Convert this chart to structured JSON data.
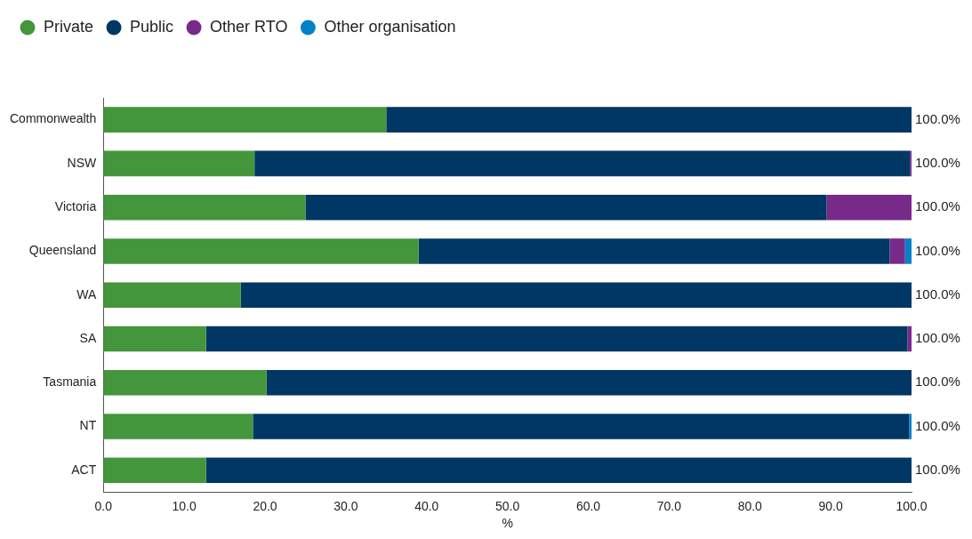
{
  "chart_data": {
    "type": "bar",
    "orientation": "horizontal",
    "stacked": true,
    "xlabel": "%",
    "categories": [
      "Commonwealth",
      "NSW",
      "Victoria",
      "Queensland",
      "WA",
      "SA",
      "Tasmania",
      "NT",
      "ACT"
    ],
    "series": [
      {
        "name": "Private",
        "color": "#43963c",
        "values": [
          35.0,
          18.7,
          25.0,
          39.0,
          17.0,
          12.7,
          20.2,
          18.5,
          12.7
        ]
      },
      {
        "name": "Public",
        "color": "#003764",
        "values": [
          65.0,
          81.1,
          64.5,
          58.3,
          83.0,
          86.8,
          79.8,
          81.2,
          87.3
        ]
      },
      {
        "name": "Other RTO",
        "color": "#782a8a",
        "values": [
          0,
          0.2,
          10.5,
          1.9,
          0,
          0.5,
          0,
          0,
          0
        ]
      },
      {
        "name": "Other organisation",
        "color": "#0082ca",
        "values": [
          0,
          0,
          0,
          0.8,
          0,
          0,
          0,
          0.3,
          0
        ]
      }
    ],
    "totals": [
      "100.0%",
      "100.0%",
      "100.0%",
      "100.0%",
      "100.0%",
      "100.0%",
      "100.0%",
      "100.0%",
      "100.0%"
    ],
    "xlim": [
      0,
      100
    ],
    "xticks": [
      {
        "value": 0,
        "label": "0.0"
      },
      {
        "value": 10,
        "label": "10.0"
      },
      {
        "value": 20,
        "label": "20.0"
      },
      {
        "value": 30,
        "label": "30.0"
      },
      {
        "value": 40,
        "label": "40.0"
      },
      {
        "value": 50,
        "label": "50.0"
      },
      {
        "value": 60,
        "label": "60.0"
      },
      {
        "value": 70,
        "label": "70.0"
      },
      {
        "value": 80,
        "label": "80.0"
      },
      {
        "value": 90,
        "label": "90.0"
      },
      {
        "value": 100,
        "label": "100.0"
      }
    ],
    "grid": false,
    "legend": "top left"
  }
}
